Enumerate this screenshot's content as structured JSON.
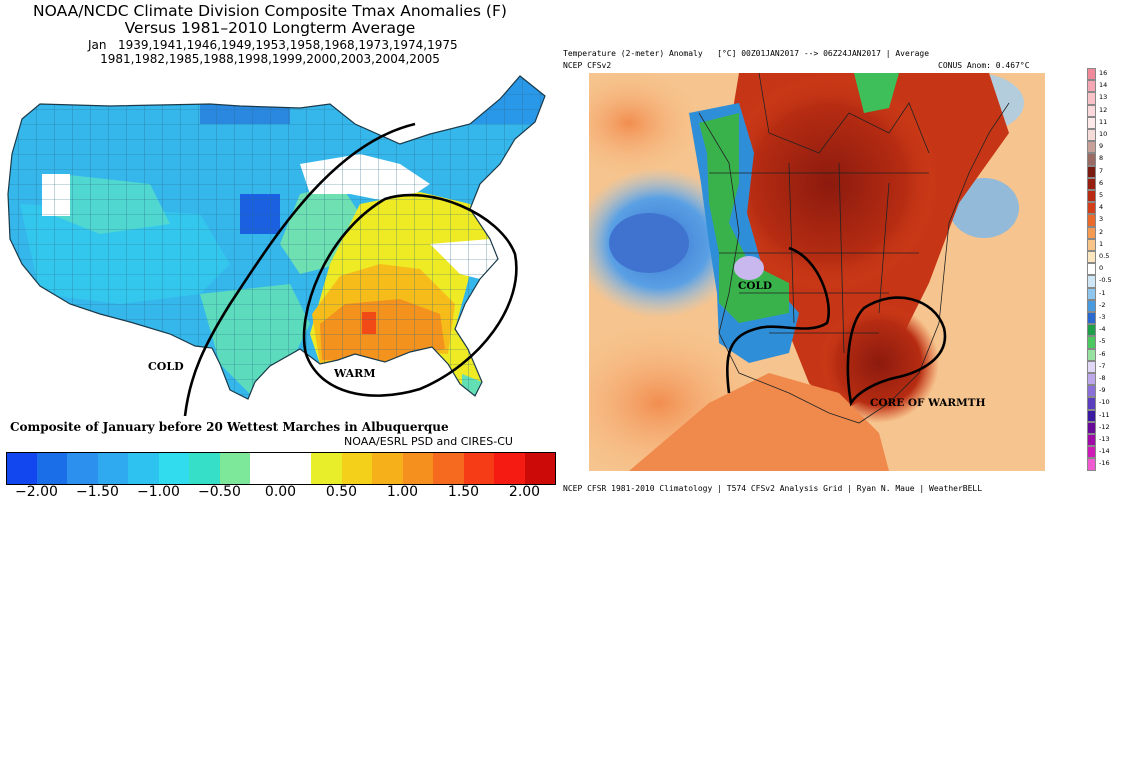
{
  "left_panel": {
    "title_line1": "NOAA/NCDC Climate Division Composite Tmax Anomalies (F)",
    "title_line2": "Versus 1981–2010 Longterm Average",
    "years_line1": "Jan   1939,1941,1946,1949,1953,1958,1968,1973,1974,1975",
    "years_line2": "1981,1982,1985,1988,1998,1999,2000,2003,2004,2005",
    "label_cold": "COLD",
    "label_warm": "WARM",
    "caption": "Composite of January before 20 Wettest Marches in Albuquerque",
    "credit": "NOAA/ESRL PSD and CIRES-CU",
    "colorbar": {
      "colors": [
        "#1247f0",
        "#1a6fe8",
        "#2b90ee",
        "#2fa9f0",
        "#2ec2f0",
        "#30dcee",
        "#36e0c8",
        "#7de89a",
        "#ffffff",
        "#ffffff",
        "#e9ee2a",
        "#f5d01a",
        "#f6b11a",
        "#f58f1e",
        "#f56a1e",
        "#f53c16",
        "#f51a12",
        "#cc0b08"
      ],
      "ticks": [
        "-2.00",
        "-1.50",
        "-1.00",
        "-0.50",
        "0.00",
        "0.50",
        "1.00",
        "1.50",
        "2.00"
      ]
    }
  },
  "right_panel": {
    "header_left": "Temperature (2-meter) Anomaly   [°C] 00Z01JAN2017 --> 06Z24JAN2017 | Average",
    "header_model": "NCEP CFSv2",
    "header_right": "CONUS Anom: 0.467°C",
    "label_cold": "COLD",
    "label_core": "CORE OF WARMTH",
    "footer": "NCEP CFSR 1981-2010 Climatology | T574 CFSv2 Analysis Grid | Ryan N. Maue | WeatherBELL",
    "colorbar": {
      "levels": [
        "16",
        "14",
        "13",
        "12",
        "11",
        "10",
        "9",
        "8",
        "7",
        "6",
        "5",
        "4",
        "3",
        "2",
        "1",
        "0.5",
        "0",
        "-0.5",
        "-1",
        "-2",
        "-3",
        "-4",
        "-5",
        "-6",
        "-7",
        "-8",
        "-9",
        "-10",
        "-11",
        "-12",
        "-13",
        "-14",
        "-16"
      ],
      "colors": [
        "#f08a9a",
        "#f4a6b2",
        "#f8c2c8",
        "#fad8dc",
        "#fde8ea",
        "#f6dcd8",
        "#c8a09a",
        "#9a6a64",
        "#7a1a10",
        "#981e10",
        "#b82a12",
        "#d4401a",
        "#ea6a2c",
        "#f49a52",
        "#f8c48a",
        "#fbe6c0",
        "#ffffff",
        "#cfe6f6",
        "#8ec6ee",
        "#4a9ae0",
        "#2a6ad0",
        "#1ea04a",
        "#4cc860",
        "#96e0a0",
        "#e0d8f6",
        "#bca8ea",
        "#8a70d8",
        "#5a3ec0",
        "#3a1aa0",
        "#6a0a9a",
        "#a00aa6",
        "#d01ab8",
        "#f05ad0"
      ]
    }
  }
}
